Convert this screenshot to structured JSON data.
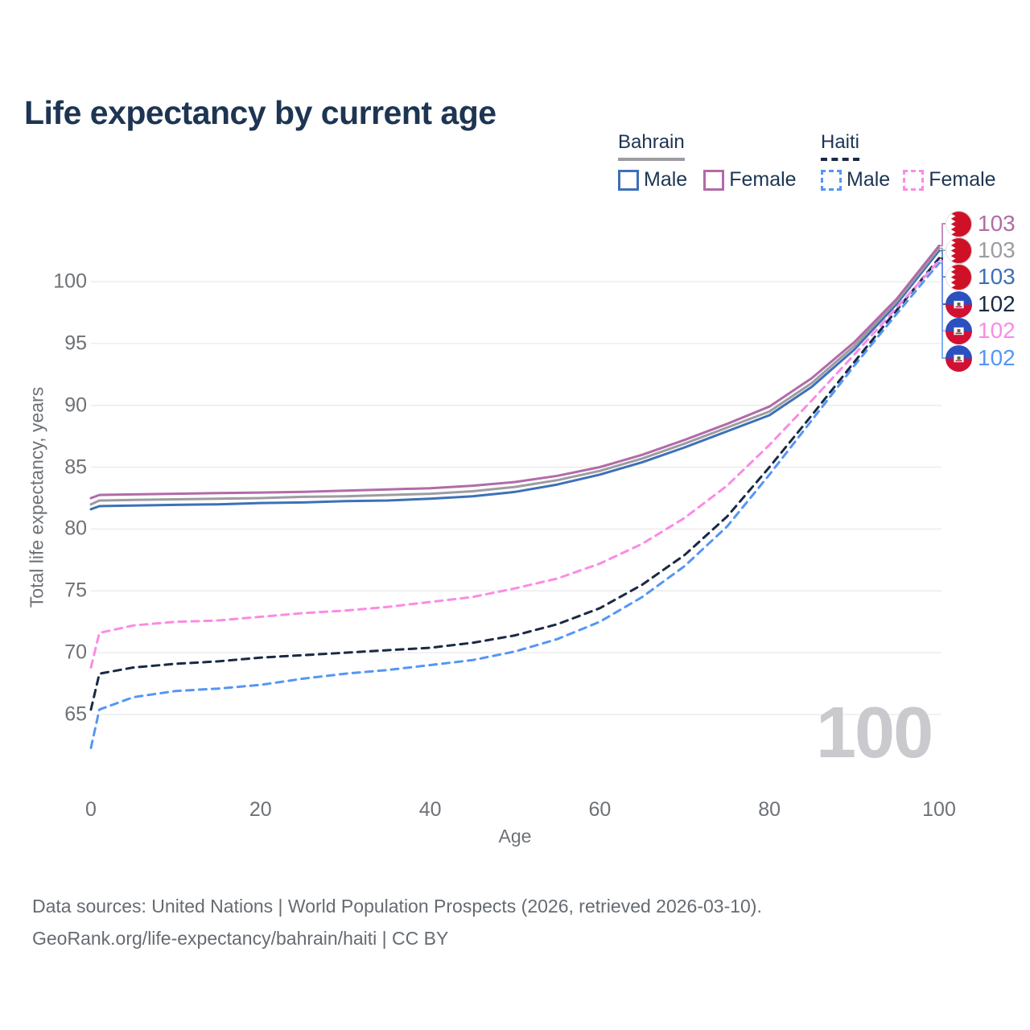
{
  "title": "Life expectancy by current age",
  "legend": {
    "groups": [
      {
        "label": "Bahrain",
        "line_style": "solid",
        "underline_color": "#9c9ca1",
        "items": [
          {
            "label": "Male",
            "color": "#3d70b8",
            "style": "solid"
          },
          {
            "label": "Female",
            "color": "#b16ba8",
            "style": "solid"
          }
        ]
      },
      {
        "label": "Haiti",
        "line_style": "dashed",
        "underline_color": "#192a45",
        "items": [
          {
            "label": "Male",
            "color": "#5596f5",
            "style": "dashed"
          },
          {
            "label": "Female",
            "color": "#fb8be4",
            "style": "dashed"
          }
        ]
      }
    ]
  },
  "axes": {
    "x": {
      "label": "Age",
      "ticks": [
        0,
        20,
        40,
        60,
        80,
        100
      ],
      "range": [
        0,
        100
      ]
    },
    "y": {
      "label": "Total life expectancy, years",
      "ticks": [
        65,
        70,
        75,
        80,
        85,
        90,
        95,
        100
      ],
      "range": [
        62,
        103.5
      ],
      "grid": true
    }
  },
  "watermark": "100",
  "right_labels": [
    {
      "value": "103",
      "flag": "bahrain",
      "series": "bahrain-female",
      "color": "#b16ba8"
    },
    {
      "value": "103",
      "flag": "bahrain",
      "series": "bahrain-total",
      "color": "#9c9ca1"
    },
    {
      "value": "103",
      "flag": "bahrain",
      "series": "bahrain-male",
      "color": "#3d70b8"
    },
    {
      "value": "102",
      "flag": "haiti",
      "series": "haiti-total",
      "color": "#192a45"
    },
    {
      "value": "102",
      "flag": "haiti",
      "series": "haiti-female",
      "color": "#fb8be4"
    },
    {
      "value": "102",
      "flag": "haiti",
      "series": "haiti-male",
      "color": "#5596f5"
    }
  ],
  "footer": {
    "line1": "Data sources: United Nations | World Population Prospects (2026, retrieved 2026-03-10).",
    "line2": "GeoRank.org/life-expectancy/bahrain/haiti | CC BY"
  },
  "colors": {
    "title_text": "#1d3552",
    "axis_text": "#6e7176",
    "gridline": "#eaeaec",
    "watermark": "#c9c9ce",
    "footer_text": "#666b71",
    "bahrain_flag_red": "#ce1126",
    "haiti_flag_blue": "#2b50c0",
    "haiti_flag_red": "#d21034"
  },
  "chart_data": {
    "type": "line",
    "title": "Life expectancy by current age",
    "xlabel": "Age",
    "ylabel": "Total life expectancy, years",
    "xlim": [
      0,
      100
    ],
    "ylim": [
      62,
      103.5
    ],
    "grid": true,
    "legend_position": "top-right",
    "x": [
      0,
      1,
      5,
      10,
      15,
      20,
      25,
      30,
      35,
      40,
      45,
      50,
      55,
      60,
      65,
      70,
      75,
      80,
      85,
      90,
      95,
      100
    ],
    "series": [
      {
        "id": "bahrain-male",
        "name": "Bahrain Male",
        "color": "#3d70b8",
        "style": "solid",
        "values": [
          81.6,
          81.85,
          81.9,
          81.95,
          82.0,
          82.1,
          82.15,
          82.25,
          82.3,
          82.45,
          82.65,
          83.0,
          83.6,
          84.4,
          85.4,
          86.6,
          87.9,
          89.2,
          91.5,
          94.5,
          98.2,
          102.5
        ]
      },
      {
        "id": "bahrain-total",
        "name": "Bahrain Total",
        "color": "#9c9ca1",
        "style": "solid",
        "values": [
          82.0,
          82.3,
          82.35,
          82.4,
          82.45,
          82.5,
          82.6,
          82.65,
          82.75,
          82.85,
          83.05,
          83.4,
          83.95,
          84.7,
          85.7,
          86.9,
          88.2,
          89.5,
          91.8,
          94.8,
          98.4,
          102.7
        ]
      },
      {
        "id": "bahrain-female",
        "name": "Bahrain Female",
        "color": "#b16ba8",
        "style": "solid",
        "values": [
          82.5,
          82.75,
          82.8,
          82.85,
          82.9,
          82.95,
          83.0,
          83.1,
          83.2,
          83.3,
          83.5,
          83.8,
          84.3,
          85.0,
          86.0,
          87.2,
          88.5,
          89.9,
          92.2,
          95.1,
          98.6,
          102.9
        ]
      },
      {
        "id": "haiti-male",
        "name": "Haiti Male",
        "color": "#5596f5",
        "style": "dashed",
        "values": [
          62.3,
          65.4,
          66.4,
          66.9,
          67.1,
          67.4,
          67.9,
          68.3,
          68.6,
          69.0,
          69.4,
          70.1,
          71.1,
          72.5,
          74.5,
          77.0,
          80.2,
          84.4,
          88.8,
          93.2,
          97.4,
          101.5
        ]
      },
      {
        "id": "haiti-total",
        "name": "Haiti Total",
        "color": "#192a45",
        "style": "dashed",
        "values": [
          65.4,
          68.3,
          68.8,
          69.1,
          69.3,
          69.6,
          69.8,
          70.0,
          70.2,
          70.4,
          70.8,
          71.4,
          72.3,
          73.6,
          75.5,
          77.9,
          81.0,
          85.0,
          89.2,
          93.5,
          97.7,
          101.9
        ]
      },
      {
        "id": "haiti-female",
        "name": "Haiti Female",
        "color": "#fb8be4",
        "style": "dashed",
        "values": [
          68.8,
          71.6,
          72.2,
          72.5,
          72.6,
          72.9,
          73.2,
          73.4,
          73.7,
          74.1,
          74.5,
          75.2,
          76.0,
          77.2,
          78.8,
          80.9,
          83.5,
          86.8,
          90.4,
          94.1,
          97.9,
          101.7
        ]
      }
    ]
  }
}
